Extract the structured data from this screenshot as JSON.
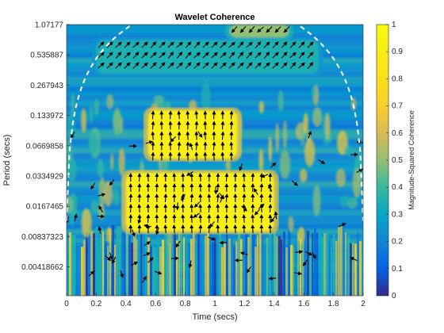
{
  "chart_data": {
    "type": "heatmap",
    "title": "Wavelet Coherence",
    "xlabel": "Time (secs)",
    "ylabel": "Period (secs)",
    "colorbar_label": "Magnitude-Squared Coherence",
    "xlim": [
      0,
      2
    ],
    "x_ticks": [
      "0",
      "0.2",
      "0.4",
      "0.6",
      "0.8",
      "1",
      "1.2",
      "1.4",
      "1.6",
      "1.8",
      "2"
    ],
    "y_scale": "log2",
    "y_ticks": [
      "1.07177",
      "0.535887",
      "0.267943",
      "0.133972",
      "0.0669858",
      "0.0334929",
      "0.0167465",
      "0.00837323",
      "0.00418662"
    ],
    "colorbar_range": [
      0,
      1
    ],
    "colorbar_ticks": [
      "0",
      "0.1",
      "0.2",
      "0.3",
      "0.4",
      "0.5",
      "0.6",
      "0.7",
      "0.8",
      "0.9",
      "1"
    ],
    "colormap": "parula",
    "regions": [
      {
        "name": "high-coherence-region",
        "t": [
          0.55,
          1.15
        ],
        "period": [
          0.05,
          0.15
        ],
        "coherence": 0.9,
        "arrow_direction": "up"
      },
      {
        "name": "high-coherence-region",
        "t": [
          0.4,
          1.4
        ],
        "period": [
          0.0095,
          0.036
        ],
        "coherence": 0.9,
        "arrow_direction": "up"
      },
      {
        "name": "upper-band",
        "t": [
          0.2,
          1.7
        ],
        "period": [
          0.35,
          0.75
        ],
        "coherence": 0.35,
        "arrow_direction": "up-right"
      },
      {
        "name": "top-right-band",
        "t": [
          1.1,
          1.5
        ],
        "period": [
          0.8,
          1.07
        ],
        "coherence": 0.5,
        "arrow_direction": "down-left"
      }
    ],
    "cone_of_influence": "dashed white line",
    "grid": false
  }
}
